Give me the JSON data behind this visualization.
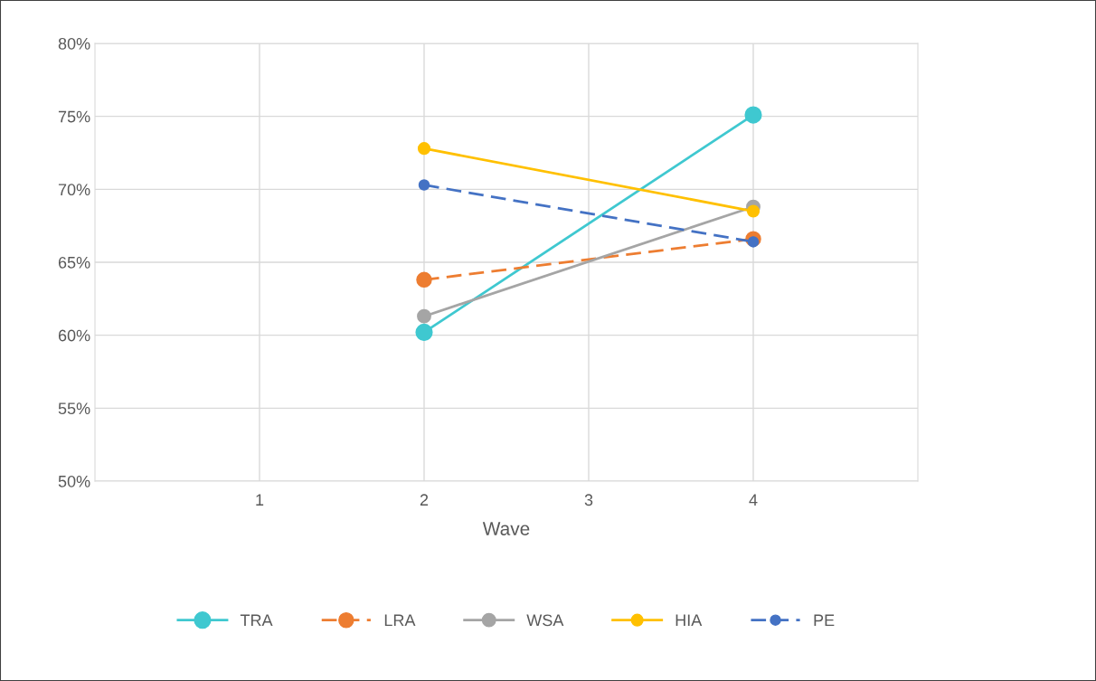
{
  "chart_data": {
    "type": "line",
    "xlabel": "Wave",
    "x": [
      2,
      4
    ],
    "series": [
      {
        "name": "TRA",
        "color": "#3fc8d0",
        "values": [
          60.2,
          75.1
        ],
        "line_style": "solid"
      },
      {
        "name": "LRA",
        "color": "#ed7d31",
        "values": [
          63.8,
          66.6
        ],
        "line_style": "dashed"
      },
      {
        "name": "WSA",
        "color": "#a5a5a5",
        "values": [
          61.3,
          68.8
        ],
        "line_style": "solid"
      },
      {
        "name": "HIA",
        "color": "#ffc000",
        "values": [
          72.8,
          68.5
        ],
        "line_style": "solid"
      },
      {
        "name": "PE",
        "color": "#4472c4",
        "values": [
          70.3,
          66.4
        ],
        "line_style": "dashed"
      }
    ],
    "xlim": [
      0,
      5
    ],
    "xticks": [
      1,
      2,
      3,
      4
    ],
    "ylim": [
      50,
      80
    ],
    "yticks": [
      {
        "value": 50,
        "label": "50%"
      },
      {
        "value": 55,
        "label": "55%"
      },
      {
        "value": 60,
        "label": "60%"
      },
      {
        "value": 65,
        "label": "65%"
      },
      {
        "value": 70,
        "label": "70%"
      },
      {
        "value": 75,
        "label": "75%"
      },
      {
        "value": 80,
        "label": "80%"
      }
    ],
    "grid": true,
    "legend": "bottom",
    "marker": "circle"
  }
}
